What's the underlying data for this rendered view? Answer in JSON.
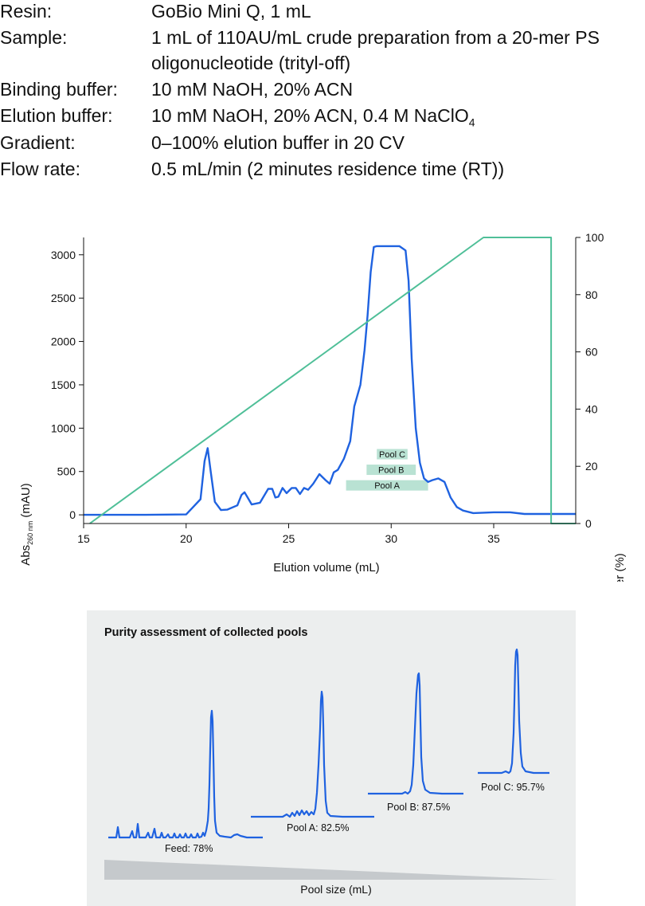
{
  "params": [
    {
      "label": "Resin:",
      "value": "GoBio Mini Q, 1 mL"
    },
    {
      "label": "Sample:",
      "value": "1 mL of 110AU/mL crude preparation from a 20-mer PS",
      "cont": "oligonucleotide (trityl-off)"
    },
    {
      "label": "Binding buffer:",
      "value": "10 mM NaOH, 20% ACN"
    },
    {
      "label": "Elution buffer:",
      "value": "10 mM NaOH, 20% ACN, 0.4 M NaClO",
      "sub": "4"
    },
    {
      "label": "Gradient:",
      "value": "0–100% elution buffer in 20 CV"
    },
    {
      "label": "Flow rate:",
      "value": "0.5 mL/min (2 minutes residence time (RT))"
    }
  ],
  "colors": {
    "absorbance": "#1f62e0",
    "gradient": "#4fbf98",
    "pool_fill": "#b9e2d3",
    "panel_bg": "#eceeee",
    "wedge": "#c5c9cc"
  },
  "chart_data": [
    {
      "type": "line",
      "xlabel": "Elution volume (mL)",
      "ylabel_main": "Abs",
      "ylabel_sub": "260 nm",
      "ylabel_unit": " (mAU)",
      "y2label": "Elution buffer (%)",
      "xlim": [
        15,
        39
      ],
      "ylim": [
        -100,
        3200
      ],
      "y2lim": [
        0,
        100
      ],
      "xticks": [
        15,
        20,
        25,
        30,
        35
      ],
      "yticks": [
        0,
        500,
        1000,
        1500,
        2000,
        2500,
        3000
      ],
      "y2ticks": [
        0,
        20,
        40,
        60,
        80,
        100
      ],
      "series": [
        {
          "role": "absorbance",
          "x": [
            15,
            18,
            20,
            20.7,
            20.9,
            21.05,
            21.2,
            21.4,
            21.7,
            22,
            22.5,
            22.7,
            22.85,
            23,
            23.2,
            23.6,
            24,
            24.2,
            24.35,
            24.5,
            24.7,
            24.9,
            25.15,
            25.35,
            25.55,
            25.75,
            25.95,
            26.2,
            26.5,
            26.8,
            27,
            27.2,
            27.4,
            27.7,
            28,
            28.2,
            28.5,
            28.7,
            28.85,
            29,
            29.15,
            29.3,
            29.6,
            30,
            30.4,
            30.7,
            30.85,
            31,
            31.2,
            31.4,
            31.6,
            31.8,
            32,
            32.3,
            32.6,
            32.9,
            33.2,
            33.5,
            34,
            35,
            35.8,
            36.5,
            39
          ],
          "y": [
            0,
            0,
            5,
            180,
            620,
            770,
            500,
            150,
            55,
            60,
            110,
            230,
            260,
            200,
            120,
            140,
            300,
            300,
            200,
            210,
            310,
            250,
            310,
            310,
            240,
            310,
            290,
            360,
            470,
            400,
            360,
            490,
            520,
            650,
            850,
            1250,
            1500,
            1900,
            2300,
            2800,
            3090,
            3100,
            3100,
            3100,
            3100,
            3050,
            2700,
            1800,
            1000,
            600,
            420,
            380,
            400,
            420,
            380,
            200,
            90,
            50,
            20,
            30,
            30,
            10,
            10
          ]
        },
        {
          "role": "gradient",
          "x": [
            15.3,
            34.5,
            37.8,
            37.8,
            39
          ],
          "y": [
            0,
            100,
            100,
            0,
            0
          ]
        }
      ],
      "pools": [
        {
          "name": "Pool C",
          "x_range": [
            29.3,
            30.8
          ],
          "y": 700
        },
        {
          "name": "Pool B",
          "x_range": [
            28.8,
            31.2
          ],
          "y": 520
        },
        {
          "name": "Pool A",
          "x_range": [
            27.8,
            31.8
          ],
          "y": 340
        }
      ]
    },
    {
      "type": "line",
      "title": "Purity assessment of collected pools",
      "xlabel": "Pool size (mL)",
      "traces": [
        {
          "label": "Feed: 78%"
        },
        {
          "label": "Pool A: 82.5%"
        },
        {
          "label": "Pool B: 87.5%"
        },
        {
          "label": "Pool C: 95.7%"
        }
      ]
    }
  ]
}
